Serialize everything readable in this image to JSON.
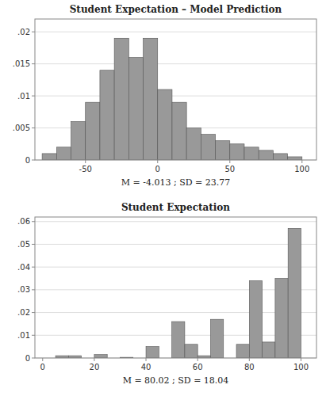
{
  "chart_data": [
    {
      "type": "histogram",
      "title": "Student Expectation – Model Prediction",
      "xlabel": "M = -4.013 ; SD = 23.77",
      "bins": [
        -80,
        -70,
        -60,
        -50,
        -40,
        -30,
        -20,
        -10,
        0,
        10,
        20,
        30,
        40,
        50,
        60,
        70,
        80,
        90,
        100
      ],
      "values": [
        0.001,
        0.002,
        0.006,
        0.009,
        0.014,
        0.019,
        0.016,
        0.019,
        0.011,
        0.009,
        0.005,
        0.004,
        0.003,
        0.0025,
        0.002,
        0.0015,
        0.001,
        0.0005
      ],
      "color": "#999999",
      "xlim": [
        -85,
        110
      ],
      "ylim": [
        0,
        0.022
      ],
      "xticks": [
        -50,
        0,
        50,
        100
      ],
      "yticks": [
        0,
        {
          "value": 0.005,
          "label": ".005"
        },
        {
          "value": 0.01,
          "label": ".01"
        },
        {
          "value": 0.015,
          "label": ".015"
        },
        {
          "value": 0.02,
          "label": ".02"
        }
      ],
      "grid": true
    },
    {
      "type": "histogram",
      "title": "Student Expectation",
      "xlabel": "M = 80.02 ; SD = 18.04",
      "bins": [
        0,
        5,
        10,
        15,
        20,
        25,
        30,
        35,
        40,
        45,
        50,
        55,
        60,
        65,
        70,
        75,
        80,
        85,
        90,
        95,
        100
      ],
      "values": [
        0.0,
        0.001,
        0.001,
        0.0,
        0.0015,
        0.0,
        0.0003,
        0.0,
        0.005,
        0.0,
        0.016,
        0.006,
        0.001,
        0.017,
        0.0,
        0.006,
        0.034,
        0.007,
        0.035,
        0.057
      ],
      "color": "#999999",
      "xlim": [
        -3,
        106
      ],
      "ylim": [
        0,
        0.062
      ],
      "xticks": [
        0,
        20,
        40,
        60,
        80,
        100
      ],
      "yticks": [
        0,
        {
          "value": 0.01,
          "label": ".01"
        },
        {
          "value": 0.02,
          "label": ".02"
        },
        {
          "value": 0.03,
          "label": ".03"
        },
        {
          "value": 0.04,
          "label": ".04"
        },
        {
          "value": 0.05,
          "label": ".05"
        },
        {
          "value": 0.06,
          "label": ".06"
        }
      ],
      "grid": true
    }
  ]
}
